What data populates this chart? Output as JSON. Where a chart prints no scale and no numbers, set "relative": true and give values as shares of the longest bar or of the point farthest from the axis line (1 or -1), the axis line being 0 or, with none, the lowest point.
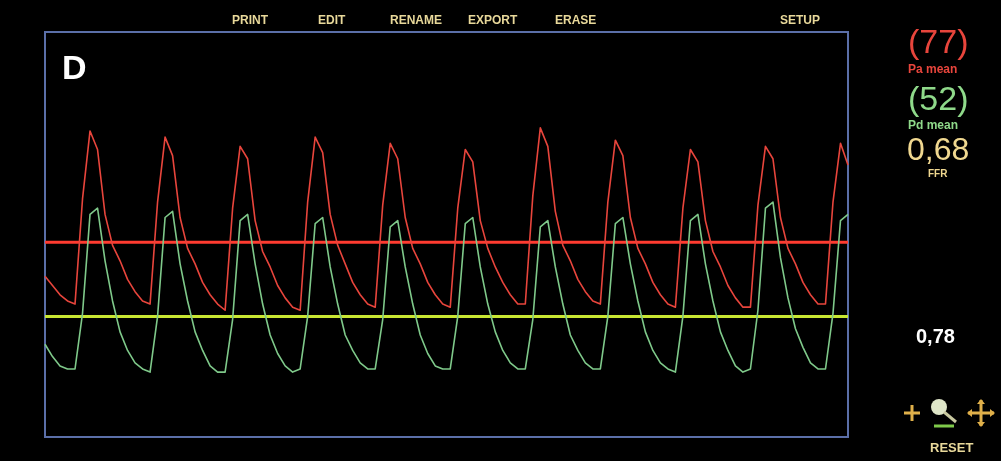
{
  "chart_data": {
    "type": "line",
    "relative": true,
    "marker": "none",
    "line_style": "solid",
    "categories": [
      null,
      null,
      null,
      null,
      null,
      null,
      null,
      null,
      null,
      null,
      null,
      null,
      null,
      null,
      null,
      null,
      null,
      null,
      null,
      null,
      null,
      null,
      null,
      null,
      null,
      null,
      null,
      null,
      null,
      null,
      null,
      null,
      null,
      null,
      null,
      null,
      null,
      null,
      null,
      null,
      null,
      null,
      null,
      null,
      null,
      null,
      null,
      null,
      null,
      null,
      null,
      null,
      null,
      null,
      null,
      null,
      null,
      null,
      null,
      null,
      null,
      null,
      null,
      null,
      null,
      null,
      null,
      null,
      null,
      null,
      null,
      null,
      null,
      null,
      null,
      null,
      null,
      null,
      null,
      null,
      null,
      null,
      null,
      null,
      null,
      null,
      null,
      null,
      null,
      null,
      null,
      null,
      null,
      null,
      null,
      null,
      null,
      null,
      null,
      null,
      null,
      null,
      null,
      null,
      null,
      null,
      null,
      null
    ],
    "series": [
      {
        "color": "#e8453c",
        "values": [
          0.52,
          0.49,
          0.46,
          0.44,
          0.43,
          0.77,
          0.99,
          0.93,
          0.72,
          0.62,
          0.57,
          0.51,
          0.47,
          0.44,
          0.43,
          0.76,
          0.97,
          0.91,
          0.71,
          0.61,
          0.56,
          0.5,
          0.46,
          0.43,
          0.41,
          0.74,
          0.94,
          0.9,
          0.7,
          0.6,
          0.55,
          0.49,
          0.45,
          0.42,
          0.41,
          0.76,
          0.97,
          0.92,
          0.72,
          0.62,
          0.56,
          0.5,
          0.46,
          0.43,
          0.42,
          0.75,
          0.95,
          0.9,
          0.71,
          0.61,
          0.56,
          0.5,
          0.46,
          0.43,
          0.42,
          0.74,
          0.93,
          0.89,
          0.7,
          0.61,
          0.55,
          0.5,
          0.46,
          0.43,
          0.43,
          0.78,
          1,
          0.94,
          0.73,
          0.62,
          0.57,
          0.51,
          0.47,
          0.44,
          0.43,
          0.76,
          0.96,
          0.91,
          0.71,
          0.61,
          0.56,
          0.5,
          0.46,
          0.43,
          0.42,
          0.74,
          0.93,
          0.89,
          0.7,
          0.6,
          0.55,
          0.49,
          0.45,
          0.42,
          0.42,
          0.75,
          0.94,
          0.9,
          0.71,
          0.61,
          0.56,
          0.5,
          0.46,
          0.43,
          0.43,
          0.76,
          0.95,
          0.88
        ]
      },
      {
        "color": "#7fc98a",
        "values": [
          0.3,
          0.26,
          0.23,
          0.22,
          0.22,
          0.4,
          0.72,
          0.74,
          0.57,
          0.44,
          0.34,
          0.28,
          0.24,
          0.22,
          0.21,
          0.39,
          0.71,
          0.73,
          0.56,
          0.44,
          0.34,
          0.28,
          0.23,
          0.21,
          0.21,
          0.38,
          0.7,
          0.72,
          0.56,
          0.43,
          0.33,
          0.27,
          0.23,
          0.21,
          0.22,
          0.39,
          0.69,
          0.71,
          0.55,
          0.43,
          0.33,
          0.28,
          0.24,
          0.22,
          0.22,
          0.38,
          0.68,
          0.7,
          0.55,
          0.43,
          0.33,
          0.27,
          0.23,
          0.22,
          0.22,
          0.39,
          0.69,
          0.71,
          0.55,
          0.43,
          0.34,
          0.28,
          0.24,
          0.22,
          0.22,
          0.38,
          0.68,
          0.7,
          0.55,
          0.43,
          0.33,
          0.28,
          0.24,
          0.22,
          0.22,
          0.39,
          0.69,
          0.71,
          0.56,
          0.44,
          0.34,
          0.28,
          0.24,
          0.22,
          0.21,
          0.39,
          0.7,
          0.72,
          0.56,
          0.44,
          0.34,
          0.28,
          0.23,
          0.21,
          0.22,
          0.41,
          0.74,
          0.76,
          0.58,
          0.45,
          0.35,
          0.29,
          0.24,
          0.22,
          0.22,
          0.4,
          0.7,
          0.72
        ]
      }
    ],
    "ref_lines": [
      {
        "axis": "y",
        "value": 0.63,
        "color": "#ff3b30"
      },
      {
        "axis": "y",
        "value": 0.39,
        "color": "#c8e632"
      }
    ],
    "annotations": [
      "D",
      "PRINT",
      "EDIT",
      "RENAME",
      "EXPORT",
      "ERASE",
      "SETUP",
      "(77)",
      "Pa mean",
      "(52)",
      "Pd mean",
      "0,68",
      "FFR",
      "0,78",
      "RESET"
    ]
  }
}
